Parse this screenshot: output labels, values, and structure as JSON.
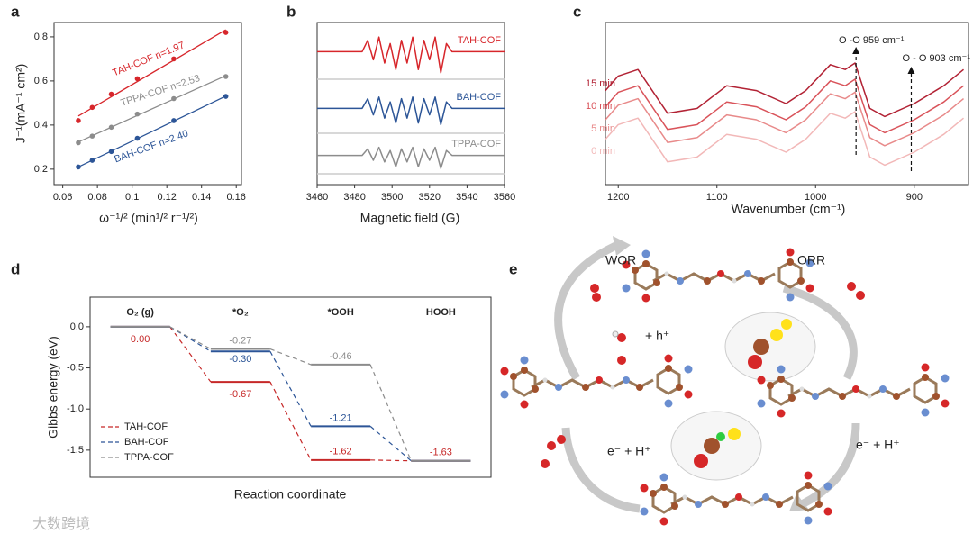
{
  "chart_data": [
    {
      "type": "scatter",
      "panel": "a",
      "xlabel": "ω⁻¹/² (min¹/² r⁻¹/²)",
      "ylabel": "J⁻¹(mA⁻¹ cm²)",
      "x": [
        0.069,
        0.077,
        0.088,
        0.103,
        0.124,
        0.154
      ],
      "series": [
        {
          "name": "TAH-COF",
          "color": "#d7262b",
          "values": [
            0.42,
            0.48,
            0.54,
            0.61,
            0.7,
            0.82
          ]
        },
        {
          "name": "TPPA-COF",
          "color": "#8c8c8c",
          "values": [
            0.32,
            0.35,
            0.39,
            0.45,
            0.52,
            0.62
          ]
        },
        {
          "name": "BAH-COF",
          "color": "#2c5597",
          "values": [
            0.21,
            0.24,
            0.28,
            0.34,
            0.42,
            0.53
          ]
        }
      ],
      "annotations": [
        "TAH-COF n=1.97",
        "TPPA-COF n=2.53",
        "BAH-COF n=2.40"
      ],
      "xlim": [
        0.055,
        0.163
      ],
      "xticks": [
        0.06,
        0.08,
        0.1,
        0.12,
        0.14,
        0.16
      ],
      "ylim": [
        0.13,
        0.865
      ],
      "yticks": [
        0.2,
        0.4,
        0.6,
        0.8
      ]
    },
    {
      "type": "line",
      "panel": "b",
      "xlabel": "Magnetic field (G)",
      "x": [
        3460,
        3484,
        3487,
        3490,
        3493,
        3496,
        3499,
        3502,
        3505,
        3508,
        3511,
        3514,
        3517,
        3520,
        3523,
        3526,
        3529,
        3532,
        3535,
        3560
      ],
      "series": [
        {
          "name": "TAH-COF",
          "color": "#d7262b",
          "values": [
            82,
            82,
            89,
            77,
            91,
            75,
            87,
            71,
            89,
            75,
            91,
            71,
            89,
            77,
            91,
            69,
            87,
            82,
            82,
            82
          ]
        },
        {
          "name": "BAH-COF",
          "color": "#2c5597",
          "values": [
            47,
            47,
            53,
            43,
            54,
            41,
            51,
            38,
            53,
            41,
            54,
            38,
            53,
            43,
            54,
            37,
            51,
            47,
            47,
            47
          ]
        },
        {
          "name": "TPPA-COF",
          "color": "#8c8c8c",
          "values": [
            18,
            18,
            22,
            15,
            23,
            14,
            21,
            11,
            22,
            14,
            23,
            11,
            22,
            15,
            23,
            10,
            21,
            18,
            18,
            18
          ]
        }
      ],
      "xlim": [
        3460,
        3560
      ],
      "xticks": [
        3460,
        3480,
        3500,
        3520,
        3540,
        3560
      ],
      "ylim": [
        0,
        100
      ]
    },
    {
      "type": "line",
      "panel": "c",
      "xlabel": "Wavenumber (cm⁻¹)",
      "x": [
        1213,
        1200,
        1180,
        1150,
        1120,
        1090,
        1060,
        1030,
        1010,
        985,
        970,
        960,
        945,
        930,
        900,
        870,
        850
      ],
      "series": [
        {
          "name": "15 min",
          "color": "#b22234",
          "values": [
            58,
            67,
            71,
            44,
            47,
            61,
            58,
            50,
            58,
            74,
            71,
            75,
            47,
            42,
            50,
            61,
            71
          ]
        },
        {
          "name": "10 min",
          "color": "#d9535a",
          "values": [
            48,
            57,
            61,
            34,
            37,
            51,
            48,
            40,
            48,
            64,
            61,
            65,
            37,
            32,
            40,
            51,
            61
          ]
        },
        {
          "name": "5 min",
          "color": "#e88a8a",
          "values": [
            40,
            49,
            53,
            26,
            29,
            43,
            40,
            32,
            40,
            56,
            53,
            57,
            29,
            24,
            32,
            43,
            53
          ]
        },
        {
          "name": "0 min",
          "color": "#f2b8b8",
          "values": [
            28,
            37,
            41,
            14,
            17,
            31,
            28,
            20,
            28,
            44,
            41,
            45,
            17,
            12,
            20,
            31,
            41
          ]
        }
      ],
      "annotations": [
        {
          "text": "O -O 959 cm⁻¹",
          "x": 959
        },
        {
          "text": "O - O 903 cm⁻¹",
          "x": 903
        }
      ],
      "xlim": [
        1213,
        845
      ],
      "xticks": [
        1200,
        1100,
        1000,
        900
      ],
      "ylim": [
        0,
        100
      ]
    },
    {
      "type": "energy",
      "panel": "d",
      "xlabel": "Reaction coordinate",
      "ylabel": "Gibbs energy (eV)",
      "categories": [
        "O₂ (g)",
        "*O₂",
        "*OOH",
        "HOOH"
      ],
      "series": [
        {
          "name": "TAH-COF",
          "color": "#c62828",
          "values": [
            0,
            -0.67,
            -1.62,
            -1.63
          ],
          "value_labels": [
            "0.00",
            "-0.67",
            "-1.62",
            "-1.63"
          ]
        },
        {
          "name": "BAH-COF",
          "color": "#2c5597",
          "values": [
            0,
            -0.3,
            -1.21,
            -1.63
          ],
          "value_labels": [
            null,
            "-0.30",
            "-1.21",
            null
          ]
        },
        {
          "name": "TPPA-COF",
          "color": "#8c8c8c",
          "values": [
            0,
            -0.27,
            -0.46,
            -1.63
          ],
          "value_labels": [
            null,
            "-0.27",
            "-0.46",
            null
          ]
        }
      ],
      "ylim": [
        -1.83,
        0.36
      ],
      "yticks": [
        {
          "value": 0,
          "label": "0.0"
        },
        -0.5,
        {
          "value": -1,
          "label": "-1.0"
        },
        -1.5
      ],
      "legend": "lower left"
    }
  ],
  "diagram": {
    "panel": "e",
    "labels": [
      "WOR",
      "ORR",
      "+ h⁺",
      "e⁻ + H⁺",
      "e⁻ + H⁺"
    ]
  },
  "watermark": "大数跨境"
}
